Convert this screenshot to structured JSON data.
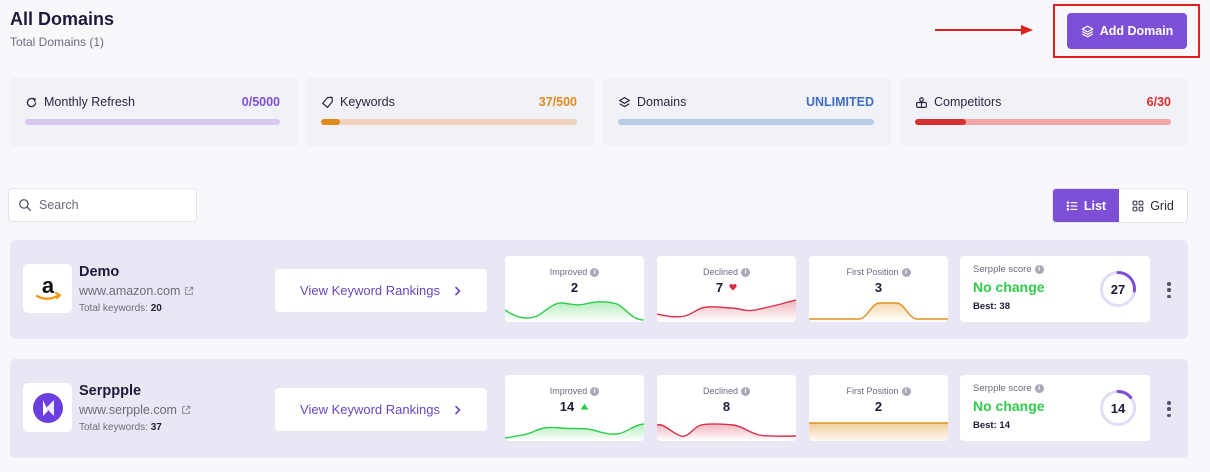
{
  "header": {
    "title": "All Domains",
    "subtitle": "Total Domains (1)",
    "add_button": "Add Domain"
  },
  "quotas": [
    {
      "label": "Monthly Refresh",
      "value": "0/5000",
      "color": "#7c4fd6",
      "track": "#d7c8f0",
      "progress": 0.0,
      "icon": "refresh-icon"
    },
    {
      "label": "Keywords",
      "value": "37/500",
      "color": "#e08a1e",
      "track": "#f0d2bc",
      "progress": 0.074,
      "icon": "tag-icon"
    },
    {
      "label": "Domains",
      "value": "UNLIMITED",
      "color": "#3e6fc2",
      "track": "#b9cbe6",
      "progress": 0.0,
      "icon": "layers-icon"
    },
    {
      "label": "Competitors",
      "value": "6/30",
      "color": "#d63030",
      "track": "#f1a5a5",
      "progress": 0.2,
      "icon": "competitors-icon"
    }
  ],
  "search": {
    "placeholder": "Search"
  },
  "view_toggle": {
    "list": "List",
    "grid": "Grid",
    "active": "list"
  },
  "domains": [
    {
      "name": "Demo",
      "url": "www.amazon.com",
      "total_keywords_label": "Total keywords:",
      "total_keywords": "20",
      "logo": "amazon-logo",
      "button": "View Keyword Rankings",
      "improved": {
        "label": "Improved",
        "value": "2",
        "trend": ""
      },
      "declined": {
        "label": "Declined",
        "value": "7",
        "trend": "down"
      },
      "first_position": {
        "label": "First Position",
        "value": "3"
      },
      "score": {
        "label": "Serpple score",
        "status": "No change",
        "best_label": "Best:",
        "best": "38",
        "value": "27",
        "fraction": 0.27
      }
    },
    {
      "name": "Serppple",
      "url": "www.serpple.com",
      "total_keywords_label": "Total keywords:",
      "total_keywords": "37",
      "logo": "serpple-logo",
      "button": "View Keyword Rankings",
      "improved": {
        "label": "Improved",
        "value": "14",
        "trend": "up"
      },
      "declined": {
        "label": "Declined",
        "value": "8",
        "trend": ""
      },
      "first_position": {
        "label": "First Position",
        "value": "2"
      },
      "score": {
        "label": "Serpple score",
        "status": "No change",
        "best_label": "Best:",
        "best": "14",
        "value": "14",
        "fraction": 0.14
      }
    }
  ],
  "colors": {
    "accent": "#7c4fd6",
    "improved": "#2ecc4a",
    "declined": "#d63048",
    "first_position": "#e0901e",
    "highlight": "#e02020"
  }
}
